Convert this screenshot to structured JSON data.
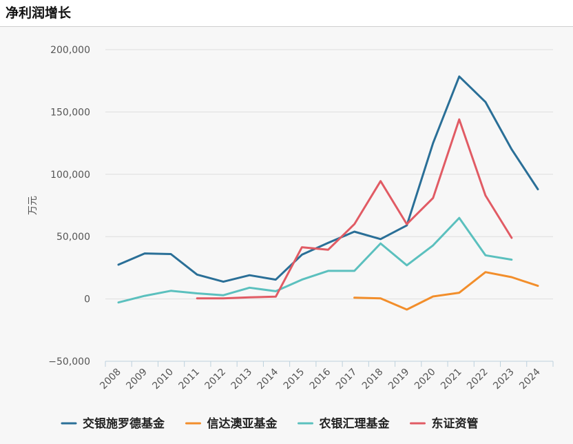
{
  "page": {
    "title": "净利润增长"
  },
  "chart_data": {
    "type": "line",
    "title": "净利润增长",
    "xlabel": "",
    "ylabel": "万元",
    "ylim": [
      -50000,
      200000
    ],
    "yticks": [
      -50000,
      0,
      50000,
      100000,
      150000,
      200000
    ],
    "ytick_labels": [
      "−50,000",
      "0",
      "50,000",
      "100,000",
      "150,000",
      "200,000"
    ],
    "categories": [
      "2008",
      "2009",
      "2010",
      "2011",
      "2012",
      "2013",
      "2014",
      "2015",
      "2016",
      "2017",
      "2018",
      "2019",
      "2020",
      "2021",
      "2022",
      "2023",
      "2024"
    ],
    "legend_position": "bottom",
    "series": [
      {
        "name": "交银施罗德基金",
        "color": "#2a6f97",
        "values": [
          27500,
          36500,
          36000,
          19500,
          13800,
          19000,
          15500,
          35500,
          45000,
          54000,
          48000,
          59000,
          125000,
          178500,
          158000,
          120000,
          88000
        ]
      },
      {
        "name": "信达澳亚基金",
        "color": "#f28e2b",
        "values": [
          null,
          null,
          null,
          null,
          null,
          null,
          null,
          null,
          null,
          1000,
          500,
          -8500,
          2000,
          5000,
          21500,
          17500,
          10500
        ]
      },
      {
        "name": "农银汇理基金",
        "color": "#5bc0be",
        "values": [
          -2800,
          2500,
          6500,
          4500,
          3000,
          9000,
          6200,
          15500,
          22500,
          22500,
          44500,
          27000,
          43000,
          65000,
          35000,
          31500,
          null
        ]
      },
      {
        "name": "东证资管",
        "color": "#e15b64",
        "values": [
          null,
          null,
          null,
          500,
          500,
          1300,
          1800,
          41500,
          39500,
          60000,
          94500,
          60000,
          81000,
          144000,
          83000,
          49000,
          null
        ]
      }
    ]
  }
}
